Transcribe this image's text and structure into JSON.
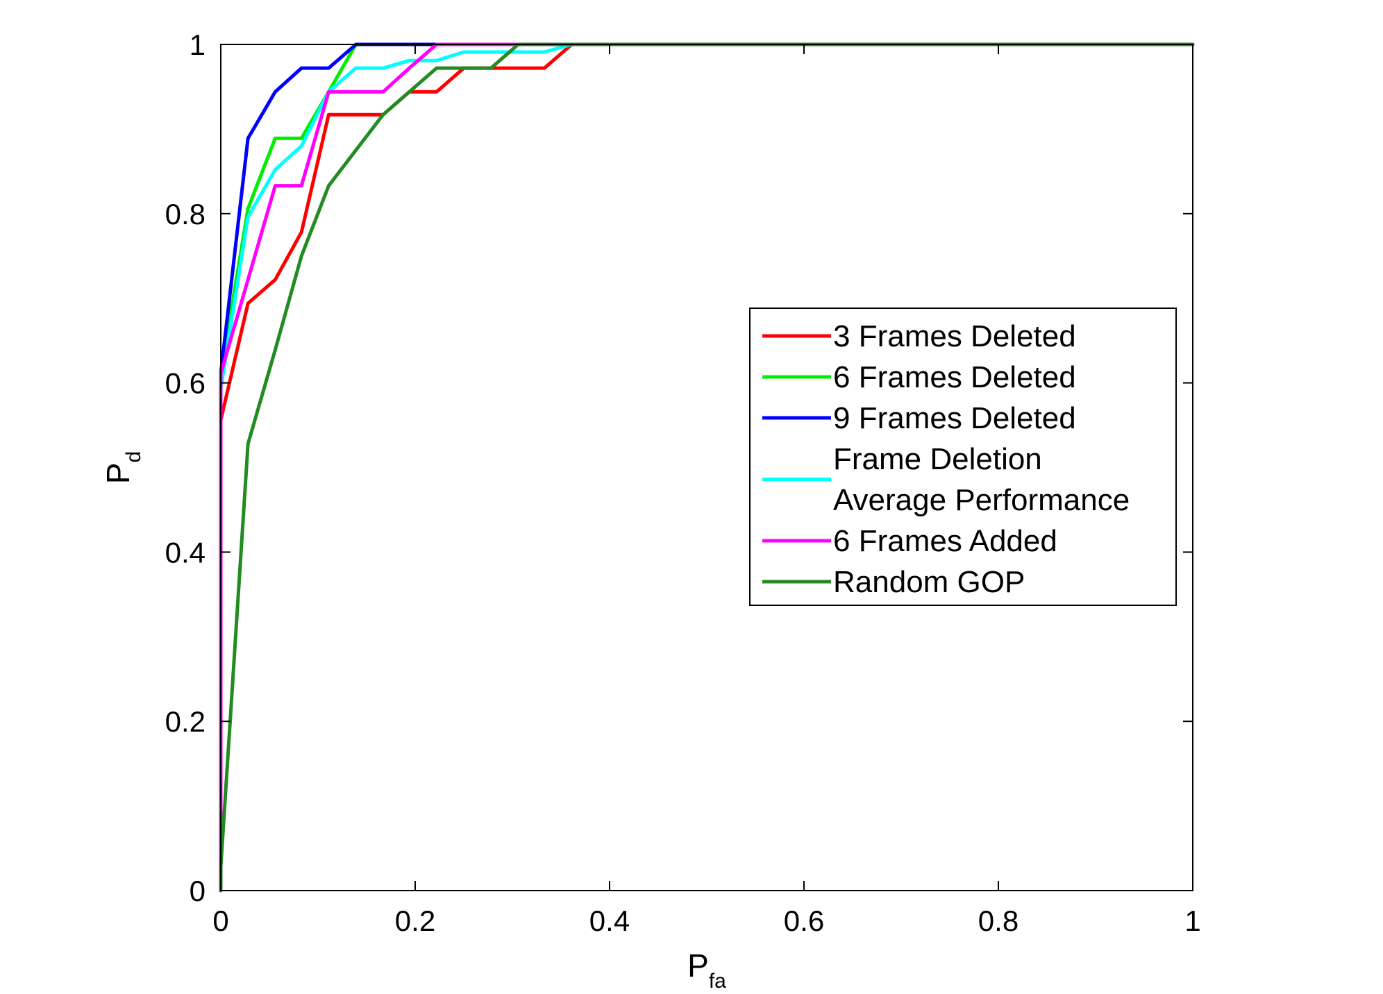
{
  "chart_data": {
    "type": "line",
    "title": "",
    "xlabel": {
      "main": "P",
      "sub": "fa"
    },
    "ylabel": {
      "main": "P",
      "sub": "d"
    },
    "xlim": [
      0,
      1
    ],
    "ylim": [
      0,
      1
    ],
    "xticks": [
      0,
      0.2,
      0.4,
      0.6,
      0.8,
      1
    ],
    "xtick_labels": [
      "0",
      "0.2",
      "0.4",
      "0.6",
      "0.8",
      "1"
    ],
    "yticks": [
      0,
      0.2,
      0.4,
      0.6,
      0.8,
      1
    ],
    "ytick_labels": [
      "0",
      "0.2",
      "0.4",
      "0.6",
      "0.8",
      "1"
    ],
    "grid": false,
    "legend_position": "center-right",
    "series": [
      {
        "name": "3 Frames Deleted",
        "color": "#ff0000",
        "x": [
          0,
          0,
          0.028,
          0.056,
          0.083,
          0.111,
          0.139,
          0.167,
          0.194,
          0.222,
          0.25,
          0.278,
          0.306,
          0.333,
          0.361,
          1
        ],
        "y": [
          0,
          0.556,
          0.694,
          0.722,
          0.778,
          0.917,
          0.917,
          0.917,
          0.944,
          0.944,
          0.972,
          0.972,
          0.972,
          0.972,
          1,
          1
        ]
      },
      {
        "name": "6 Frames Deleted",
        "color": "#00ee00",
        "x": [
          0,
          0,
          0.028,
          0.056,
          0.083,
          0.111,
          0.139,
          1
        ],
        "y": [
          0,
          0.611,
          0.806,
          0.889,
          0.889,
          0.944,
          1,
          1
        ]
      },
      {
        "name": "9 Frames Deleted",
        "color": "#0000ff",
        "x": [
          0,
          0,
          0.028,
          0.056,
          0.083,
          0.111,
          0.139,
          1
        ],
        "y": [
          0,
          0.611,
          0.889,
          0.944,
          0.972,
          0.972,
          1,
          1
        ]
      },
      {
        "name": "Frame Deletion\nAverage Performance",
        "legend_lines": [
          "Frame Deletion",
          "Average Performance"
        ],
        "color": "#00ffff",
        "x": [
          0,
          0,
          0.028,
          0.056,
          0.083,
          0.111,
          0.139,
          0.167,
          0.194,
          0.222,
          0.25,
          0.278,
          0.306,
          0.333,
          0.361,
          1
        ],
        "y": [
          0,
          0.593,
          0.796,
          0.852,
          0.88,
          0.944,
          0.972,
          0.972,
          0.981,
          0.981,
          0.991,
          0.991,
          0.991,
          0.991,
          1,
          1
        ]
      },
      {
        "name": "6 Frames Added",
        "color": "#ff00ff",
        "x": [
          0,
          0,
          0.028,
          0.056,
          0.083,
          0.111,
          0.139,
          0.167,
          0.194,
          0.222,
          1
        ],
        "y": [
          0,
          0.611,
          0.722,
          0.833,
          0.833,
          0.944,
          0.944,
          0.944,
          0.972,
          1,
          1
        ]
      },
      {
        "name": "Random GOP",
        "color": "#228b22",
        "x": [
          0,
          0,
          0.028,
          0.056,
          0.083,
          0.111,
          0.139,
          0.167,
          0.194,
          0.222,
          0.25,
          0.278,
          0.306,
          1
        ],
        "y": [
          0,
          0.028,
          0.528,
          0.639,
          0.75,
          0.833,
          0.875,
          0.917,
          0.944,
          0.972,
          0.972,
          0.972,
          1,
          1
        ]
      }
    ]
  }
}
